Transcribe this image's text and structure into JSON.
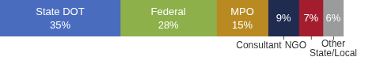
{
  "chart_data": {
    "type": "bar",
    "orientation": "horizontal",
    "stacked": true,
    "categories": [
      null
    ],
    "series": [
      {
        "name": "State DOT",
        "color": "#4a6cbf",
        "values": [
          35
        ],
        "value_labels": [
          "35%"
        ]
      },
      {
        "name": "Federal",
        "color": "#8db04b",
        "values": [
          28
        ],
        "value_labels": [
          "28%"
        ]
      },
      {
        "name": "MPO",
        "color": "#b98a22",
        "values": [
          15
        ],
        "value_labels": [
          "15%"
        ]
      },
      {
        "name": "Consultant",
        "color": "#1f2b4f",
        "values": [
          9
        ],
        "value_labels": [
          "9%"
        ]
      },
      {
        "name": "NGO",
        "color": "#a31d2e",
        "values": [
          7
        ],
        "value_labels": [
          "7%"
        ]
      },
      {
        "name": "Other State/Local",
        "color": "#9b9b9b",
        "values": [
          6
        ],
        "value_labels": [
          "6%"
        ]
      }
    ],
    "xlim": [
      0,
      100
    ],
    "data_labels": true,
    "tick_labels": false
  }
}
